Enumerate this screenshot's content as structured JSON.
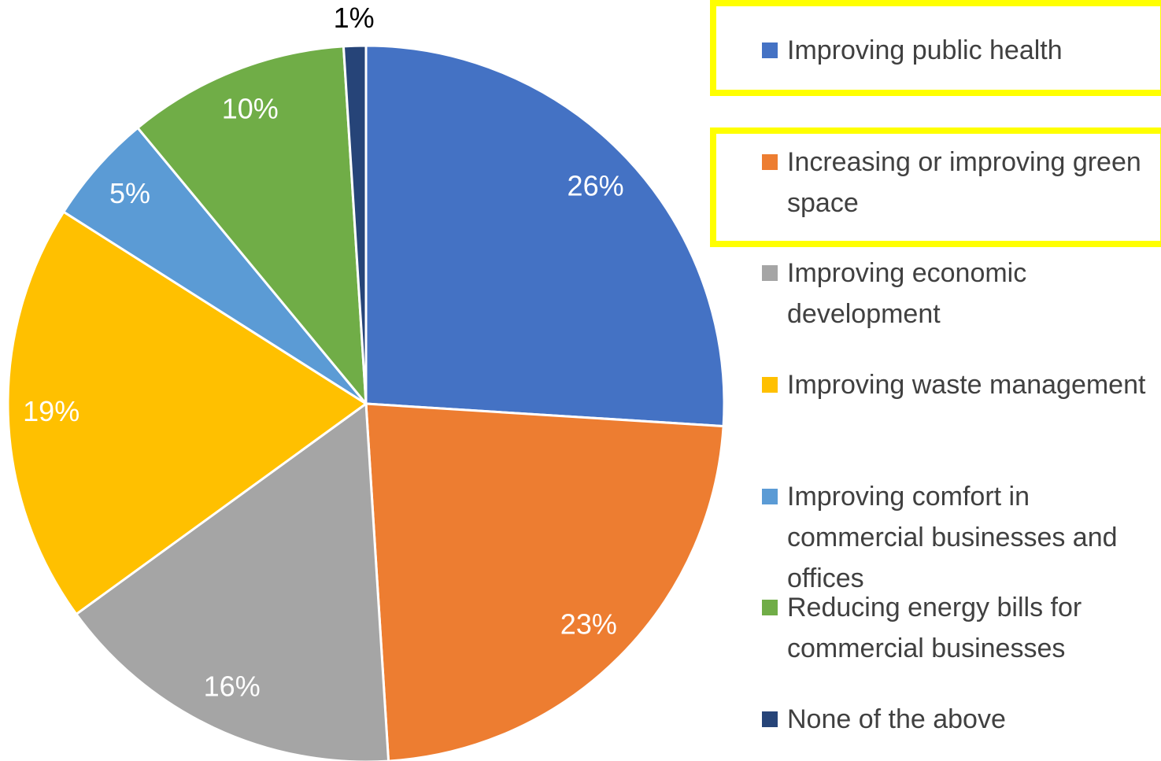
{
  "chart_data": {
    "type": "pie",
    "categories": [
      "Improving public health",
      "Increasing or improving green space",
      "Improving economic development",
      "Improving waste management",
      "Improving comfort in commercial businesses and offices",
      "Reducing energy bills for commercial businesses",
      "None of the above"
    ],
    "values": [
      26,
      23,
      16,
      19,
      5,
      10,
      1
    ],
    "value_labels": [
      "26%",
      "23%",
      "16%",
      "19%",
      "5%",
      "10%",
      "1%"
    ],
    "colors": [
      "#4472c4",
      "#ed7d31",
      "#a5a5a5",
      "#ffc000",
      "#5b9bd5",
      "#70ad47",
      "#264478"
    ],
    "legend": "right"
  }
}
